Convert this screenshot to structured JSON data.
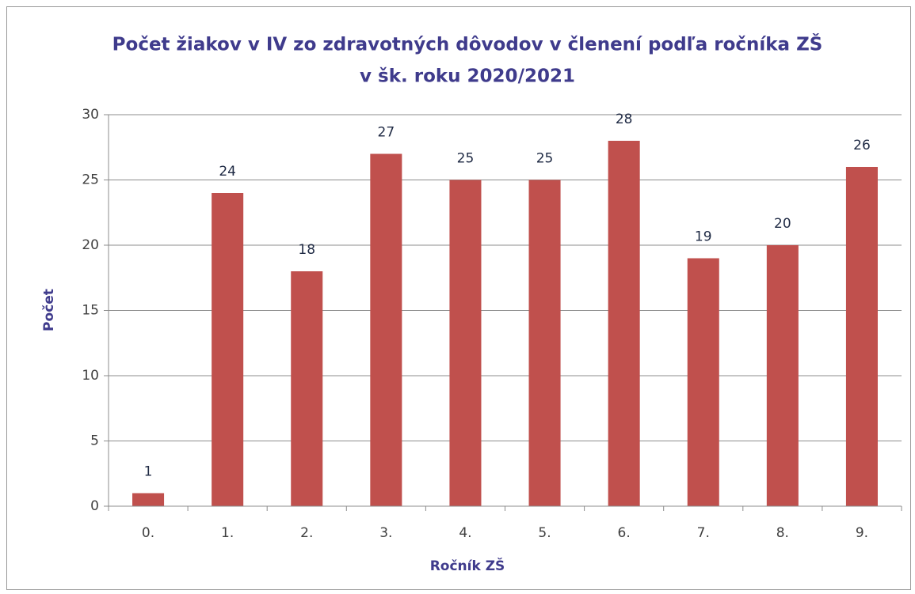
{
  "chart_data": {
    "type": "bar",
    "title": [
      "Počet žiakov v IV zo zdravotných dôvodov v členení podľa ročníka ZŠ",
      "v šk. roku 2020/2021"
    ],
    "x_label": "Ročník ZŠ",
    "y_label": "Počet",
    "categories": [
      "0.",
      "1.",
      "2.",
      "3.",
      "4.",
      "5.",
      "6.",
      "7.",
      "8.",
      "9."
    ],
    "values": [
      1,
      24,
      18,
      27,
      25,
      25,
      28,
      19,
      20,
      26
    ],
    "color": "#c0504d",
    "ylim": [
      0,
      30
    ],
    "yticks": [
      0,
      5,
      10,
      15,
      20,
      25,
      30
    ],
    "grid": true
  }
}
